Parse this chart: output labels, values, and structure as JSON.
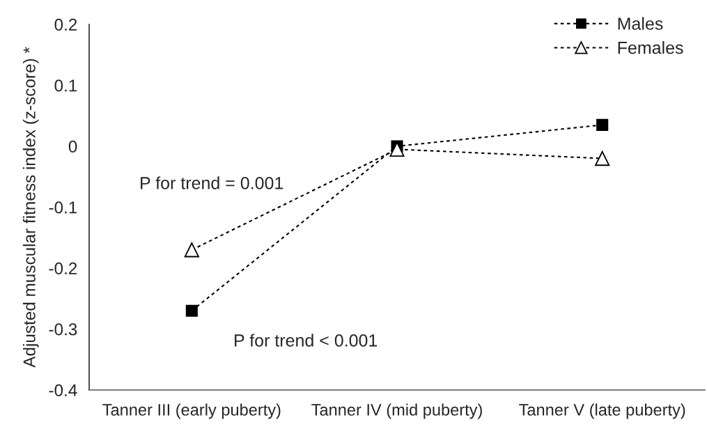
{
  "chart_data": {
    "type": "line",
    "ylabel": "Adjusted muscular fitness index (z-score) *",
    "categories": [
      "Tanner III (early puberty)",
      "Tanner IV (mid puberty)",
      "Tanner V (late puberty)"
    ],
    "series": [
      {
        "name": "Males",
        "color": "#000000",
        "marker": "square",
        "values": [
          -0.27,
          0.0,
          0.035
        ]
      },
      {
        "name": "Females",
        "color": "#000000",
        "marker": "triangle",
        "values": [
          -0.17,
          -0.005,
          -0.02
        ]
      }
    ],
    "ylim": [
      -0.4,
      0.2
    ],
    "yticks": [
      -0.4,
      -0.3,
      -0.2,
      -0.1,
      0,
      0.1,
      0.2
    ],
    "line_style": "dashed",
    "legend": "top right",
    "annotations": [
      "P for trend = 0.001",
      "P for trend < 0.001"
    ]
  }
}
